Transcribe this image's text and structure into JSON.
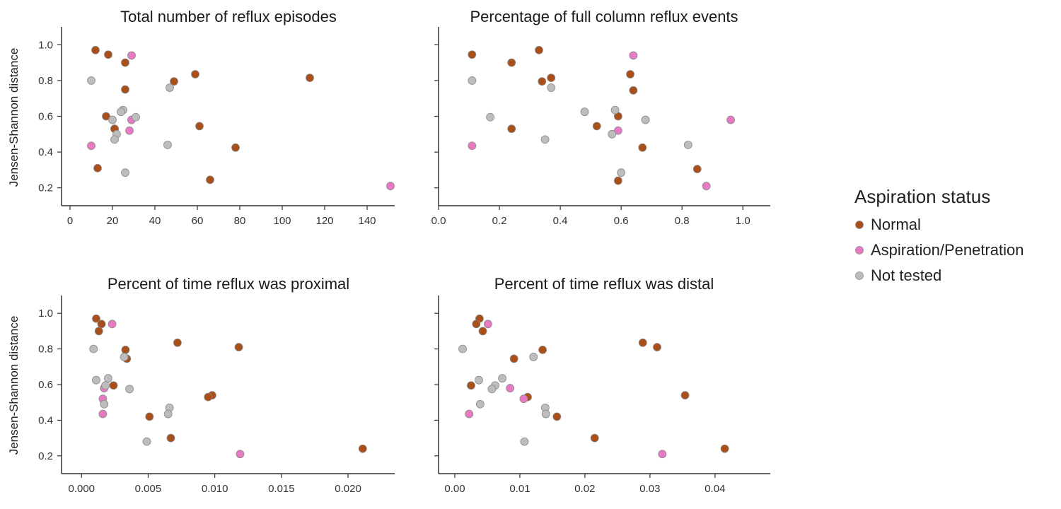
{
  "ylabel": "Jensen-Shannon distance",
  "legend": {
    "title": "Aspiration status",
    "entries": [
      {
        "key": "normal",
        "label": "Normal"
      },
      {
        "key": "asp",
        "label": "Aspiration/Penetration"
      },
      {
        "key": "nt",
        "label": "Not tested"
      }
    ]
  },
  "colors": {
    "normal": "#a84f1a",
    "asp": "#e87ac4",
    "nt": "#bdbdbd",
    "edge": "#8a8a8a"
  },
  "chart_data": [
    {
      "type": "scatter",
      "title": "Total number of reflux episodes",
      "xlabel": "",
      "ylabel": "Jensen-Shannon distance",
      "xlim": [
        -4,
        153
      ],
      "ylim": [
        0.1,
        1.1
      ],
      "xticks": [
        0,
        20,
        40,
        60,
        80,
        100,
        120,
        140
      ],
      "xtick_labels": [
        "0",
        "20",
        "40",
        "60",
        "80",
        "100",
        "120",
        "140"
      ],
      "yticks": [
        0.2,
        0.4,
        0.6,
        0.8,
        1.0
      ],
      "ytick_labels": [
        "0.2",
        "0.4",
        "0.6",
        "0.8",
        "1.0"
      ],
      "series": [
        {
          "name": "Normal",
          "key": "normal",
          "x": [
            12,
            18,
            26,
            26,
            17,
            21,
            21,
            13,
            49,
            59,
            61,
            66,
            78,
            113
          ],
          "y": [
            0.97,
            0.945,
            0.9,
            0.75,
            0.6,
            0.53,
            0.53,
            0.31,
            0.795,
            0.835,
            0.545,
            0.245,
            0.425,
            0.815
          ]
        },
        {
          "name": "Aspiration/Penetration",
          "key": "asp",
          "x": [
            29,
            29,
            28,
            10,
            151
          ],
          "y": [
            0.94,
            0.58,
            0.52,
            0.435,
            0.21
          ]
        },
        {
          "name": "Not tested",
          "key": "nt",
          "x": [
            10,
            47,
            25,
            24,
            31,
            20,
            22,
            21,
            46,
            26
          ],
          "y": [
            0.8,
            0.76,
            0.635,
            0.625,
            0.595,
            0.58,
            0.5,
            0.47,
            0.44,
            0.285
          ]
        }
      ]
    },
    {
      "type": "scatter",
      "title": "Percentage of full column reflux events",
      "xlabel": "",
      "ylabel": "",
      "xlim": [
        0.0,
        1.09
      ],
      "ylim": [
        0.1,
        1.1
      ],
      "xticks": [
        0.0,
        0.2,
        0.4,
        0.6,
        0.8,
        1.0
      ],
      "xtick_labels": [
        "0.0",
        "0.2",
        "0.4",
        "0.6",
        "0.8",
        "1.0"
      ],
      "yticks": [
        0.2,
        0.4,
        0.6,
        0.8,
        1.0
      ],
      "ytick_labels": [
        "",
        "",
        "",
        "",
        ""
      ],
      "series": [
        {
          "name": "Normal",
          "key": "normal",
          "x": [
            0.11,
            0.24,
            0.33,
            0.37,
            0.34,
            0.63,
            0.64,
            0.59,
            0.52,
            0.24,
            0.67,
            0.85,
            0.59
          ],
          "y": [
            0.945,
            0.9,
            0.97,
            0.815,
            0.795,
            0.835,
            0.745,
            0.6,
            0.545,
            0.53,
            0.425,
            0.305,
            0.24
          ]
        },
        {
          "name": "Aspiration/Penetration",
          "key": "asp",
          "x": [
            0.64,
            0.96,
            0.59,
            0.11,
            0.88
          ],
          "y": [
            0.94,
            0.58,
            0.52,
            0.435,
            0.21
          ]
        },
        {
          "name": "Not tested",
          "key": "nt",
          "x": [
            0.11,
            0.37,
            0.48,
            0.58,
            0.17,
            0.68,
            0.57,
            0.35,
            0.82,
            0.6
          ],
          "y": [
            0.8,
            0.76,
            0.625,
            0.635,
            0.595,
            0.58,
            0.5,
            0.47,
            0.44,
            0.285
          ]
        }
      ]
    },
    {
      "type": "scatter",
      "title": "Percent of time reflux was proximal",
      "xlabel": "",
      "ylabel": "Jensen-Shannon distance",
      "xlim": [
        -0.0015,
        0.0235
      ],
      "ylim": [
        0.1,
        1.1
      ],
      "xticks": [
        0.0,
        0.005,
        0.01,
        0.015,
        0.02
      ],
      "xtick_labels": [
        "0.000",
        "0.005",
        "0.010",
        "0.015",
        "0.020"
      ],
      "yticks": [
        0.2,
        0.4,
        0.6,
        0.8,
        1.0
      ],
      "ytick_labels": [
        "0.2",
        "0.4",
        "0.6",
        "0.8",
        "1.0"
      ],
      "series": [
        {
          "name": "Normal",
          "key": "normal",
          "x": [
            0.0011,
            0.0015,
            0.0013,
            0.0072,
            0.0118,
            0.0033,
            0.0034,
            0.0024,
            0.0098,
            0.0095,
            0.0051,
            0.0067,
            0.0211
          ],
          "y": [
            0.97,
            0.94,
            0.9,
            0.835,
            0.81,
            0.795,
            0.745,
            0.595,
            0.54,
            0.53,
            0.42,
            0.3,
            0.24
          ]
        },
        {
          "name": "Aspiration/Penetration",
          "key": "asp",
          "x": [
            0.0023,
            0.0017,
            0.0016,
            0.0016,
            0.0119
          ],
          "y": [
            0.94,
            0.58,
            0.52,
            0.435,
            0.21
          ]
        },
        {
          "name": "Not tested",
          "key": "nt",
          "x": [
            0.0009,
            0.0032,
            0.0011,
            0.002,
            0.0018,
            0.0036,
            0.0017,
            0.0066,
            0.0065,
            0.0049
          ],
          "y": [
            0.8,
            0.755,
            0.625,
            0.635,
            0.595,
            0.575,
            0.49,
            0.47,
            0.435,
            0.28
          ]
        }
      ]
    },
    {
      "type": "scatter",
      "title": "Percent of time reflux was distal",
      "xlabel": "",
      "ylabel": "",
      "xlim": [
        -0.0025,
        0.0485
      ],
      "ylim": [
        0.1,
        1.1
      ],
      "xticks": [
        0.0,
        0.01,
        0.02,
        0.03,
        0.04
      ],
      "xtick_labels": [
        "0.00",
        "0.01",
        "0.02",
        "0.03",
        "0.04"
      ],
      "yticks": [
        0.2,
        0.4,
        0.6,
        0.8,
        1.0
      ],
      "ytick_labels": [
        "",
        "",
        "",
        "",
        ""
      ],
      "series": [
        {
          "name": "Normal",
          "key": "normal",
          "x": [
            0.0038,
            0.0033,
            0.0043,
            0.0289,
            0.0311,
            0.0135,
            0.0091,
            0.0025,
            0.0354,
            0.0112,
            0.0157,
            0.0215,
            0.0415
          ],
          "y": [
            0.97,
            0.94,
            0.9,
            0.835,
            0.81,
            0.795,
            0.745,
            0.595,
            0.54,
            0.53,
            0.42,
            0.3,
            0.24
          ]
        },
        {
          "name": "Aspiration/Penetration",
          "key": "asp",
          "x": [
            0.0051,
            0.0085,
            0.0106,
            0.0022,
            0.0319
          ],
          "y": [
            0.94,
            0.58,
            0.52,
            0.435,
            0.21
          ]
        },
        {
          "name": "Not tested",
          "key": "nt",
          "x": [
            0.0012,
            0.0121,
            0.0037,
            0.0073,
            0.0062,
            0.0057,
            0.0039,
            0.0139,
            0.014,
            0.0107
          ],
          "y": [
            0.8,
            0.755,
            0.625,
            0.635,
            0.595,
            0.575,
            0.49,
            0.47,
            0.435,
            0.28
          ]
        }
      ]
    }
  ]
}
